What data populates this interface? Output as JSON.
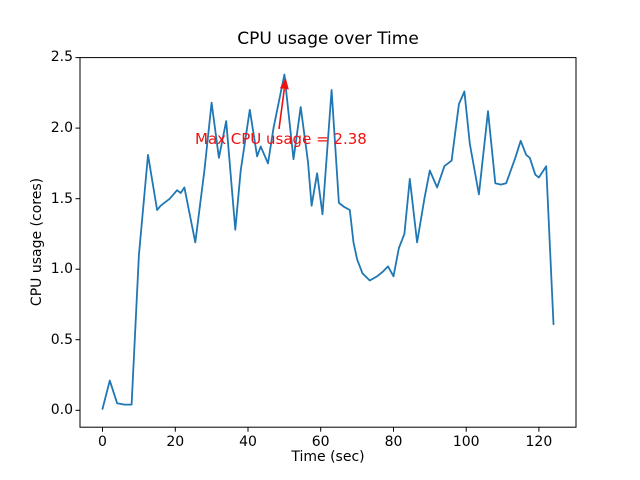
{
  "figure": {
    "title": "CPU usage over Time",
    "background": "#ffffff"
  },
  "annotation": {
    "text": "Max CPU usage = 2.38",
    "color": "#ee1111",
    "points_to": {
      "x": 50,
      "y": 2.38
    }
  },
  "chart_data": {
    "type": "line",
    "title": "CPU usage over Time",
    "xlabel": "Time (sec)",
    "ylabel": "CPU usage (cores)",
    "x_tick_labels": [
      "0",
      "20",
      "40",
      "60",
      "80",
      "100",
      "120"
    ],
    "y_tick_labels": [
      "0.0",
      "0.5",
      "1.0",
      "1.5",
      "2.0",
      "2.5"
    ],
    "x_tick_values": [
      0,
      20,
      40,
      60,
      80,
      100,
      120
    ],
    "y_tick_values": [
      0.0,
      0.5,
      1.0,
      1.5,
      2.0,
      2.5
    ],
    "xlim": [
      -6.2,
      130.2
    ],
    "ylim": [
      -0.12,
      2.5
    ],
    "grid": false,
    "legend": "none",
    "line_color": "#1f77b4",
    "annotation_color": "#ee1111",
    "series": [
      {
        "name": "CPU usage",
        "max_value": 2.38,
        "x": [
          0,
          2,
          4,
          6,
          8,
          10,
          12.5,
          15,
          16,
          18.5,
          20.5,
          21.5,
          22.5,
          25.5,
          28,
          30,
          32,
          34,
          36.5,
          38,
          40.5,
          42.5,
          43.5,
          45.5,
          47,
          50,
          52.5,
          54.5,
          56.5,
          57.5,
          59,
          60.5,
          63,
          65,
          66.5,
          68,
          69,
          70,
          71.5,
          73.5,
          75.5,
          77,
          78.5,
          80,
          81.5,
          83,
          84.5,
          86.5,
          88.5,
          90,
          92,
          94,
          96,
          98,
          99.5,
          101,
          103.5,
          106,
          108,
          109.5,
          111,
          113.5,
          115,
          116.5,
          117.5,
          119,
          120,
          122,
          124
        ],
        "y": [
          0.01,
          0.21,
          0.05,
          0.04,
          0.04,
          1.1,
          1.81,
          1.42,
          1.45,
          1.5,
          1.56,
          1.54,
          1.58,
          1.19,
          1.7,
          2.18,
          1.79,
          2.05,
          1.28,
          1.7,
          2.13,
          1.8,
          1.87,
          1.75,
          2.0,
          2.38,
          1.78,
          2.15,
          1.76,
          1.45,
          1.68,
          1.39,
          2.27,
          1.47,
          1.44,
          1.42,
          1.19,
          1.07,
          0.97,
          0.92,
          0.95,
          0.98,
          1.02,
          0.95,
          1.15,
          1.25,
          1.64,
          1.19,
          1.5,
          1.7,
          1.58,
          1.73,
          1.77,
          2.17,
          2.26,
          1.89,
          1.53,
          2.12,
          1.61,
          1.6,
          1.61,
          1.79,
          1.91,
          1.81,
          1.79,
          1.67,
          1.65,
          1.73,
          0.61
        ]
      }
    ]
  }
}
